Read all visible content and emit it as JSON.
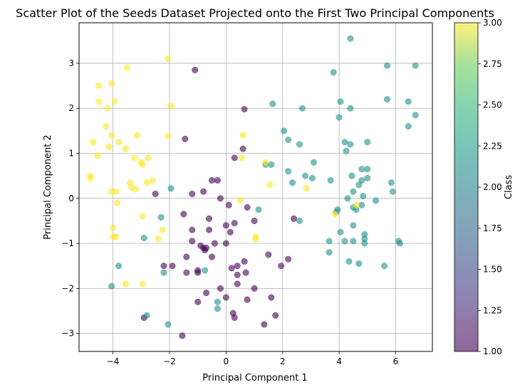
{
  "chart_data": {
    "type": "scatter",
    "title": "Scatter Plot of the Seeds Dataset Projected onto the First Two Principal Components",
    "xlabel": "Principal Component 1",
    "ylabel": "Principal Component 2",
    "xlim": [
      -5.2,
      7.3
    ],
    "ylim": [
      -3.4,
      3.9
    ],
    "xticks": [
      -4,
      -2,
      0,
      2,
      4,
      6
    ],
    "yticks": [
      -3,
      -2,
      -1,
      0,
      1,
      2,
      3
    ],
    "xtick_labels": [
      "−4",
      "−2",
      "0",
      "2",
      "4",
      "6"
    ],
    "ytick_labels": [
      "−3",
      "−2",
      "−1",
      "0",
      "1",
      "2",
      "3"
    ],
    "grid": true,
    "colormap": "viridis",
    "marker_alpha": 0.6,
    "colorbar": {
      "label": "Class",
      "min": 1.0,
      "max": 3.0,
      "ticks": [
        1.0,
        1.25,
        1.5,
        1.75,
        2.0,
        2.25,
        2.5,
        2.75,
        3.0
      ],
      "tick_labels": [
        "1.00",
        "1.25",
        "1.50",
        "1.75",
        "2.00",
        "2.25",
        "2.50",
        "2.75",
        "3.00"
      ]
    },
    "series": [
      {
        "class": 1,
        "color": "#440154",
        "points": [
          [
            -1.1,
            2.85
          ],
          [
            0.65,
            1.98
          ],
          [
            -1.45,
            1.32
          ],
          [
            0.3,
            0.9
          ],
          [
            0.6,
            1.1
          ],
          [
            -2.5,
            0.1
          ],
          [
            -1.2,
            0.1
          ],
          [
            -0.8,
            0.15
          ],
          [
            -0.5,
            0.4
          ],
          [
            -0.3,
            0.4
          ],
          [
            -0.2,
            0.0
          ],
          [
            0.1,
            -0.15
          ],
          [
            0.75,
            -0.2
          ],
          [
            -0.6,
            -0.45
          ],
          [
            0.3,
            -0.55
          ],
          [
            0.0,
            -0.6
          ],
          [
            -1.5,
            -0.35
          ],
          [
            -1.2,
            -0.7
          ],
          [
            -0.6,
            -0.7
          ],
          [
            0.15,
            -0.75
          ],
          [
            -1.2,
            -0.95
          ],
          [
            -0.9,
            -1.05
          ],
          [
            -0.8,
            -1.1
          ],
          [
            -0.75,
            -1.15
          ],
          [
            -0.7,
            -1.1
          ],
          [
            -0.4,
            -1.0
          ],
          [
            0.0,
            -1.0
          ],
          [
            1.0,
            -0.5
          ],
          [
            -1.0,
            -1.6
          ],
          [
            -1.4,
            -1.3
          ],
          [
            -0.5,
            -1.3
          ],
          [
            -2.2,
            -1.5
          ],
          [
            -1.9,
            -1.5
          ],
          [
            -1.4,
            -1.65
          ],
          [
            -1.0,
            -1.65
          ],
          [
            0.2,
            -1.55
          ],
          [
            0.4,
            -1.5
          ],
          [
            0.65,
            -1.4
          ],
          [
            0.7,
            -1.65
          ],
          [
            0.4,
            -1.7
          ],
          [
            1.5,
            -1.25
          ],
          [
            2.2,
            -1.35
          ],
          [
            1.95,
            -1.5
          ],
          [
            0.4,
            -1.9
          ],
          [
            1.0,
            -2.0
          ],
          [
            -0.7,
            -2.1
          ],
          [
            -0.2,
            -2.0
          ],
          [
            -1.0,
            -2.3
          ],
          [
            0.0,
            -2.2
          ],
          [
            0.75,
            -2.25
          ],
          [
            1.6,
            -2.2
          ],
          [
            1.75,
            -2.6
          ],
          [
            0.25,
            -2.55
          ],
          [
            0.3,
            -2.65
          ],
          [
            -2.9,
            -2.65
          ],
          [
            1.35,
            -2.8
          ],
          [
            -1.55,
            -3.05
          ],
          [
            2.4,
            -0.45
          ]
        ]
      },
      {
        "class": 2,
        "color": "#21918c",
        "points": [
          [
            4.4,
            3.55
          ],
          [
            5.7,
            2.95
          ],
          [
            6.7,
            2.95
          ],
          [
            3.8,
            2.8
          ],
          [
            5.7,
            2.2
          ],
          [
            6.45,
            2.15
          ],
          [
            4.05,
            2.15
          ],
          [
            1.65,
            2.1
          ],
          [
            2.7,
            2.0
          ],
          [
            4.4,
            2.0
          ],
          [
            4.0,
            1.8
          ],
          [
            6.7,
            1.85
          ],
          [
            6.45,
            1.6
          ],
          [
            2.05,
            1.5
          ],
          [
            4.2,
            1.25
          ],
          [
            2.2,
            1.3
          ],
          [
            2.6,
            1.2
          ],
          [
            4.4,
            1.2
          ],
          [
            4.25,
            1.05
          ],
          [
            5.0,
            1.25
          ],
          [
            3.1,
            0.8
          ],
          [
            1.4,
            0.75
          ],
          [
            1.6,
            0.75
          ],
          [
            2.2,
            0.6
          ],
          [
            4.8,
            0.65
          ],
          [
            5.0,
            0.65
          ],
          [
            2.8,
            0.5
          ],
          [
            3.05,
            0.45
          ],
          [
            4.45,
            0.5
          ],
          [
            5.0,
            0.45
          ],
          [
            2.35,
            0.35
          ],
          [
            3.7,
            0.4
          ],
          [
            4.8,
            0.4
          ],
          [
            4.7,
            0.3
          ],
          [
            5.85,
            0.35
          ],
          [
            4.5,
            0.15
          ],
          [
            5.9,
            0.15
          ],
          [
            4.85,
            0.05
          ],
          [
            4.3,
            0.0
          ],
          [
            5.3,
            -0.05
          ],
          [
            -1.95,
            0.22
          ],
          [
            4.8,
            -0.15
          ],
          [
            4.5,
            -0.2
          ],
          [
            3.95,
            -0.25
          ],
          [
            4.6,
            -0.25
          ],
          [
            1.15,
            -0.25
          ],
          [
            3.9,
            -0.3
          ],
          [
            2.6,
            -0.5
          ],
          [
            4.5,
            -0.6
          ],
          [
            4.05,
            -0.75
          ],
          [
            4.9,
            -0.8
          ],
          [
            4.9,
            -0.9
          ],
          [
            3.65,
            -0.95
          ],
          [
            4.2,
            -0.95
          ],
          [
            4.5,
            -0.95
          ],
          [
            4.9,
            -1.0
          ],
          [
            6.1,
            -0.95
          ],
          [
            6.15,
            -1.0
          ],
          [
            3.65,
            -1.2
          ],
          [
            4.35,
            -1.4
          ],
          [
            4.7,
            -1.45
          ],
          [
            5.6,
            -1.5
          ],
          [
            -3.8,
            -1.5
          ],
          [
            -0.75,
            -1.6
          ],
          [
            -2.2,
            -1.65
          ],
          [
            -4.05,
            -1.95
          ],
          [
            -0.3,
            -2.3
          ],
          [
            -0.3,
            -2.45
          ],
          [
            -2.8,
            -2.6
          ],
          [
            -2.05,
            -2.8
          ],
          [
            -2.9,
            -0.88
          ],
          [
            -2.3,
            -0.42
          ]
        ]
      },
      {
        "class": 3,
        "color": "#fde725",
        "points": [
          [
            -2.05,
            3.1
          ],
          [
            -3.5,
            2.9
          ],
          [
            -4.05,
            2.55
          ],
          [
            -4.5,
            2.5
          ],
          [
            -4.5,
            2.15
          ],
          [
            -3.95,
            2.15
          ],
          [
            -1.95,
            2.05
          ],
          [
            -4.2,
            2.0
          ],
          [
            -4.25,
            1.6
          ],
          [
            -4.05,
            1.4
          ],
          [
            -3.15,
            1.4
          ],
          [
            -2.05,
            1.38
          ],
          [
            -4.7,
            1.25
          ],
          [
            -3.8,
            1.25
          ],
          [
            -4.15,
            1.15
          ],
          [
            -3.55,
            1.1
          ],
          [
            -4.55,
            0.95
          ],
          [
            -3.25,
            0.9
          ],
          [
            -2.75,
            0.9
          ],
          [
            -3.0,
            0.8
          ],
          [
            -2.95,
            0.75
          ],
          [
            0.6,
            1.4
          ],
          [
            0.55,
            0.9
          ],
          [
            -3.4,
            0.35
          ],
          [
            -3.35,
            0.25
          ],
          [
            -3.2,
            0.2
          ],
          [
            -2.6,
            0.4
          ],
          [
            -2.8,
            0.35
          ],
          [
            -4.8,
            0.5
          ],
          [
            -4.8,
            0.45
          ],
          [
            -4.05,
            0.15
          ],
          [
            -3.9,
            0.15
          ],
          [
            -3.85,
            -0.1
          ],
          [
            -2.95,
            -0.4
          ],
          [
            -4.0,
            -0.65
          ],
          [
            -4.0,
            -0.85
          ],
          [
            -3.9,
            -0.85
          ],
          [
            -2.25,
            -0.7
          ],
          [
            -2.4,
            -0.9
          ],
          [
            -2.95,
            -1.9
          ],
          [
            -3.55,
            -1.9
          ],
          [
            1.4,
            0.8
          ],
          [
            1.55,
            0.3
          ],
          [
            0.5,
            -0.05
          ],
          [
            1.05,
            -0.85
          ],
          [
            1.05,
            -0.9
          ],
          [
            2.85,
            0.22
          ],
          [
            3.85,
            -0.35
          ],
          [
            4.6,
            -0.15
          ]
        ]
      }
    ]
  }
}
